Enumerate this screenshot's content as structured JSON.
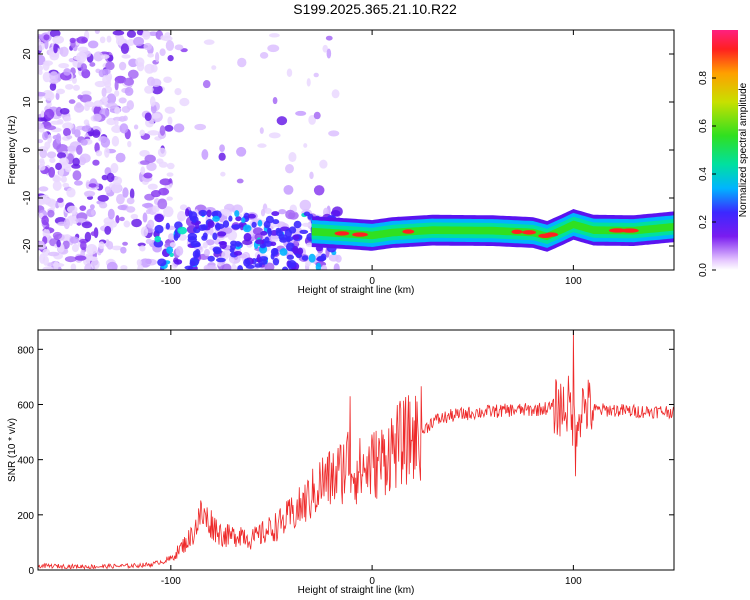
{
  "title": "S199.2025.365.21.10.R22",
  "chart_data": [
    {
      "type": "heatmap",
      "title": "S199.2025.365.21.10.R22",
      "xlabel": "Height of straight line (km)",
      "ylabel": "Frequency (Hz)",
      "xlim": [
        -166,
        150
      ],
      "ylim": [
        -25,
        25
      ],
      "xticks": [
        -100,
        0,
        100
      ],
      "yticks": [
        -20,
        -10,
        0,
        10,
        20
      ],
      "colorbar": {
        "label": "Normalized spectral amplitude",
        "range": [
          0,
          1
        ],
        "ticks": [
          "0.0",
          "0.2",
          "0.4",
          "0.6",
          "0.8"
        ],
        "colormap": [
          "#ffffff",
          "#e6c8ff",
          "#7a1cf0",
          "#3c28ff",
          "#00b4ff",
          "#00e0a0",
          "#30e020",
          "#c8e000",
          "#ffa000",
          "#ff2020",
          "#ff2080"
        ]
      },
      "ridge": {
        "description_x": [
          -30,
          -10,
          0,
          10,
          30,
          60,
          80,
          87,
          95,
          100,
          110,
          130,
          150
        ],
        "description_y": [
          -17,
          -17.5,
          -17.8,
          -17.2,
          -16.7,
          -16.8,
          -17.2,
          -18.0,
          -16.5,
          -15.5,
          -16.7,
          -16.8,
          -16.0
        ]
      }
    },
    {
      "type": "line",
      "xlabel": "Height of straight line (km)",
      "ylabel": "SNR (10 * v/v)",
      "xlim": [
        -166,
        150
      ],
      "ylim": [
        0,
        870
      ],
      "xticks": [
        -100,
        0,
        100
      ],
      "yticks": [
        0,
        200,
        400,
        600,
        800
      ],
      "color": "#ee2a2a",
      "series": [
        {
          "name": "SNR",
          "x": [
            -166,
            -140,
            -120,
            -110,
            -100,
            -95,
            -90,
            -85,
            -80,
            -75,
            -70,
            -65,
            -60,
            -55,
            -50,
            -45,
            -40,
            -35,
            -30,
            -25,
            -20,
            -15,
            -12,
            -10,
            -5,
            0,
            5,
            10,
            15,
            20,
            25,
            30,
            40,
            50,
            60,
            70,
            80,
            90,
            95,
            98,
            100,
            102,
            105,
            110,
            120,
            130,
            140,
            150
          ],
          "y": [
            15,
            12,
            15,
            20,
            40,
            80,
            120,
            200,
            170,
            130,
            120,
            135,
            110,
            130,
            150,
            170,
            200,
            230,
            270,
            320,
            330,
            360,
            400,
            360,
            360,
            380,
            400,
            440,
            460,
            480,
            500,
            540,
            560,
            570,
            575,
            580,
            580,
            590,
            590,
            600,
            500,
            560,
            600,
            580,
            580,
            575,
            575,
            575
          ]
        }
      ],
      "spikes": [
        {
          "x": -11,
          "y": 630
        },
        {
          "x": 100,
          "y": 870
        },
        {
          "x": 101,
          "y": 340
        }
      ]
    }
  ]
}
